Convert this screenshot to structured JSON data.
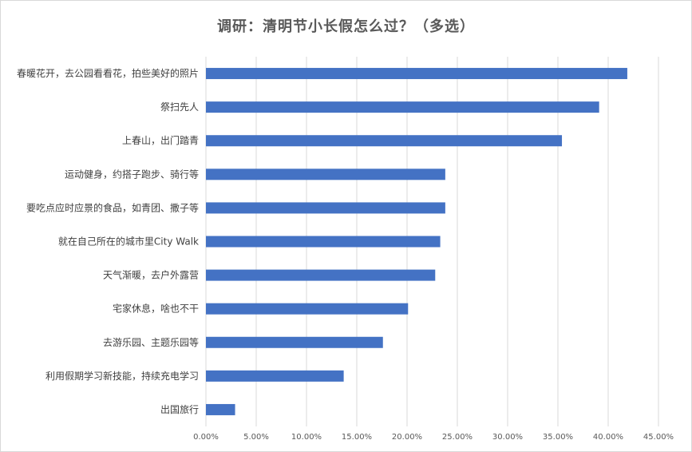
{
  "chart_data": {
    "type": "bar",
    "orientation": "horizontal",
    "title": "调研：清明节小长假怎么过？（多选）",
    "categories": [
      "春暖花开，去公园看看花，拍些美好的照片",
      "祭扫先人",
      "上春山，出门踏青",
      "运动健身，约搭子跑步、骑行等",
      "要吃点应时应景的食品，如青团、撒子等",
      "就在自己所在的城市里City Walk",
      "天气渐暖，去户外露营",
      "宅家休息，啥也不干",
      "去游乐园、主题乐园等",
      "利用假期学习新技能，持续充电学习",
      "出国旅行"
    ],
    "values": [
      41.9,
      39.1,
      35.4,
      23.8,
      23.8,
      23.3,
      22.8,
      20.1,
      17.6,
      13.7,
      2.9
    ],
    "value_unit": "%",
    "xlim": [
      0,
      45
    ],
    "xticks": [
      "0.00%",
      "5.00%",
      "10.00%",
      "15.00%",
      "20.00%",
      "25.00%",
      "30.00%",
      "35.00%",
      "40.00%",
      "45.00%"
    ],
    "xtick_values": [
      0,
      5,
      10,
      15,
      20,
      25,
      30,
      35,
      40,
      45
    ],
    "grid": "vertical",
    "bar_color": "#4472c4",
    "grid_color": "#d9d9d9"
  }
}
